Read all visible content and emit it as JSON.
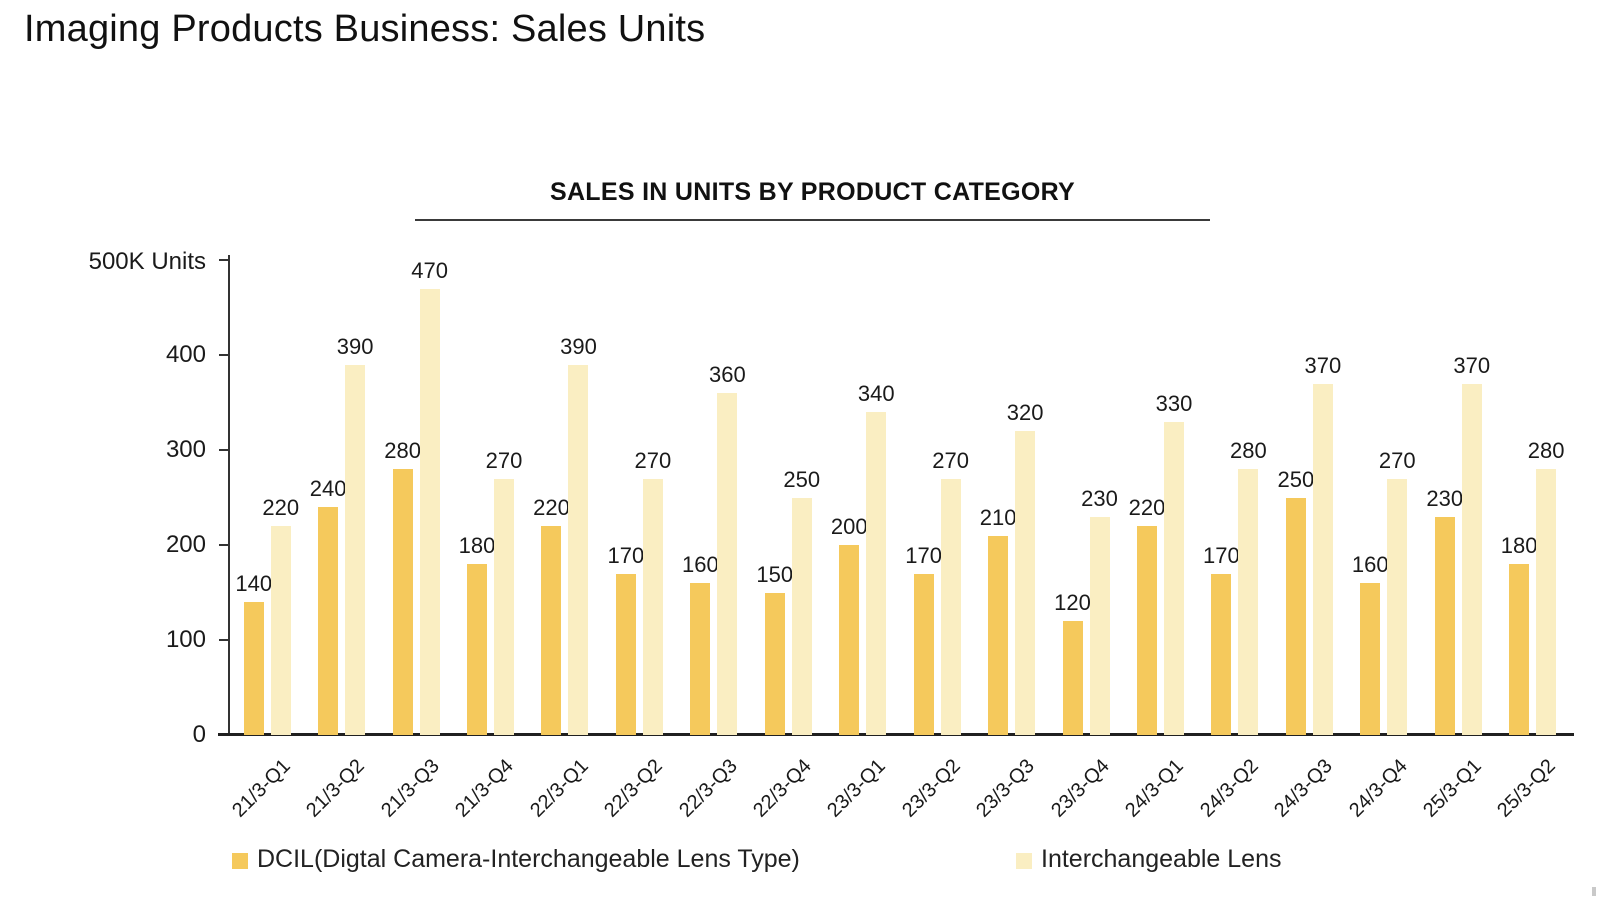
{
  "page": {
    "title": "Imaging Products Business: Sales Units"
  },
  "chart_data": {
    "type": "bar",
    "title": "SALES IN UNITS BY PRODUCT CATEGORY",
    "ylabel": "500K Units",
    "xlabel": "",
    "ylim": [
      0,
      500
    ],
    "y_ticks": [
      400,
      300,
      200,
      100,
      0
    ],
    "grid": false,
    "data_labels": true,
    "legend_position": "bottom",
    "categories": [
      "21/3-Q1",
      "21/3-Q2",
      "21/3-Q3",
      "21/3-Q4",
      "22/3-Q1",
      "22/3-Q2",
      "22/3-Q3",
      "22/3-Q4",
      "23/3-Q1",
      "23/3-Q2",
      "23/3-Q3",
      "23/3-Q4",
      "24/3-Q1",
      "24/3-Q2",
      "24/3-Q3",
      "24/3-Q4",
      "25/3-Q1",
      "25/3-Q2"
    ],
    "series": [
      {
        "name": "DCIL(Digtal Camera-Interchangeable Lens Type)",
        "color": "#F5C95C",
        "values": [
          140,
          240,
          280,
          180,
          220,
          170,
          160,
          150,
          200,
          170,
          210,
          120,
          220,
          170,
          250,
          160,
          230,
          180
        ]
      },
      {
        "name": "Interchangeable Lens",
        "color": "#FAEEC2",
        "values": [
          220,
          390,
          470,
          270,
          390,
          270,
          360,
          250,
          340,
          270,
          320,
          230,
          330,
          280,
          370,
          270,
          370,
          280
        ]
      }
    ]
  }
}
